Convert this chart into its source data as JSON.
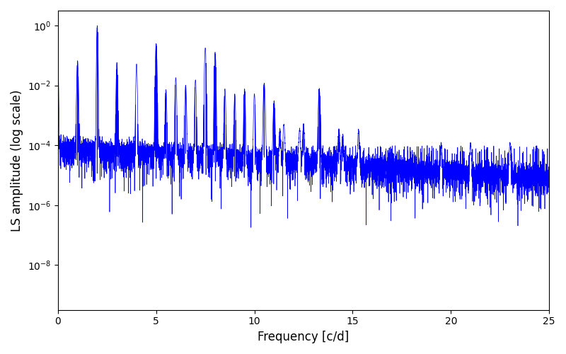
{
  "title": "",
  "xlabel": "Frequency [c/d]",
  "ylabel": "LS amplitude (log scale)",
  "xlim": [
    0,
    25
  ],
  "ylim_log": [
    -9.5,
    0.5
  ],
  "color": "#0000ff",
  "linewidth": 0.5,
  "figsize": [
    8.0,
    5.0
  ],
  "dpi": 100,
  "freq_min": 0.0,
  "freq_max": 25.0,
  "n_points": 8000,
  "seed": 137,
  "background_base_log": -4.0,
  "background_decay": 0.04,
  "noise_sigma": 2.5,
  "peak_freqs": [
    1.003,
    2.005,
    3.008,
    5.0,
    6.0,
    7.5,
    8.0,
    10.5,
    13.3
  ],
  "peak_heights": [
    0.015,
    1.0,
    0.005,
    0.25,
    0.003,
    0.18,
    0.13,
    0.012,
    0.008
  ],
  "peak_widths": [
    0.03,
    0.02,
    0.03,
    0.025,
    0.03,
    0.025,
    0.025,
    0.03,
    0.03
  ],
  "yticks": [
    1e-08,
    1e-06,
    0.0001,
    0.01,
    1.0
  ],
  "xticks": [
    0,
    5,
    10,
    15,
    20,
    25
  ]
}
